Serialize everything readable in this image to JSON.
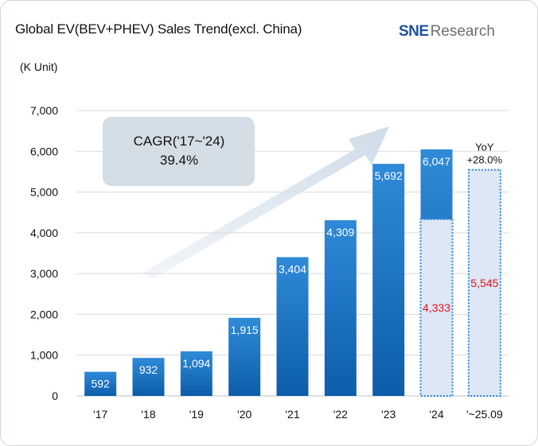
{
  "title": "Global EV(BEV+PHEV) Sales Trend(excl. China)",
  "unit_label": "(K Unit)",
  "logo": {
    "brand": "SNE",
    "suffix": "Research"
  },
  "annotation": {
    "line1": "CAGR('17~'24)",
    "line2": "39.4%"
  },
  "yoy": {
    "line1": "YoY",
    "line2": "+28.0%"
  },
  "colors": {
    "bar_top": "#2f8ad8",
    "bar_bottom": "#0c5dab",
    "dotted_fill": "#dde7f6",
    "dotted_border": "#2f86d0",
    "ref_text": "#e8111b",
    "arrow": "#cfdce9",
    "cagr_box": "#d3dee6",
    "grid": "#d9d9d9"
  },
  "chart_data": {
    "type": "bar",
    "categories": [
      "'17",
      "'18",
      "'19",
      "'20",
      "'21",
      "'22",
      "'23",
      "'24",
      "'~25.09"
    ],
    "values": [
      592,
      932,
      1094,
      1915,
      3404,
      4309,
      5692,
      6047,
      null
    ],
    "value_labels": [
      "592",
      "932",
      "1,094",
      "1,915",
      "3,404",
      "4,309",
      "5,692",
      "6,047",
      ""
    ],
    "comparison": {
      "categories": [
        "'24",
        "'~25.09"
      ],
      "values": [
        4333,
        5545
      ],
      "labels": [
        "4,333",
        "5,545"
      ]
    },
    "yticks": [
      0,
      1000,
      2000,
      3000,
      4000,
      5000,
      6000,
      7000
    ],
    "ytick_labels": [
      "0",
      "1,000",
      "2,000",
      "3,000",
      "4,000",
      "5,000",
      "6,000",
      "7,000"
    ],
    "ylim": [
      0,
      7000
    ],
    "grid": true
  }
}
